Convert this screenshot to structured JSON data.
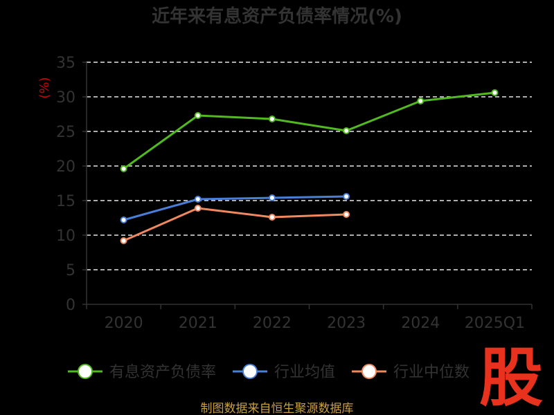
{
  "chart_data": {
    "type": "line",
    "title": "近年来有息资产负债率情况(%)",
    "ylabel": "(%)",
    "categories": [
      "2020",
      "2021",
      "2022",
      "2023",
      "2024",
      "2025Q1"
    ],
    "ylim": [
      0,
      35
    ],
    "yticks": [
      0,
      5,
      10,
      15,
      20,
      25,
      30,
      35
    ],
    "grid": true,
    "legend_position": "bottom",
    "series": [
      {
        "name": "有息资产负债率",
        "color": "#52b920",
        "values": [
          19.6,
          27.3,
          26.8,
          25.1,
          29.4,
          30.6
        ]
      },
      {
        "name": "行业均值",
        "color": "#4a7fd9",
        "values": [
          12.2,
          15.2,
          15.4,
          15.6,
          null,
          null
        ]
      },
      {
        "name": "行业中位数",
        "color": "#f08860",
        "values": [
          9.2,
          13.9,
          12.6,
          13.0,
          null,
          null
        ]
      }
    ]
  },
  "source": "制图数据来自恒生聚源数据库",
  "brand": "股"
}
